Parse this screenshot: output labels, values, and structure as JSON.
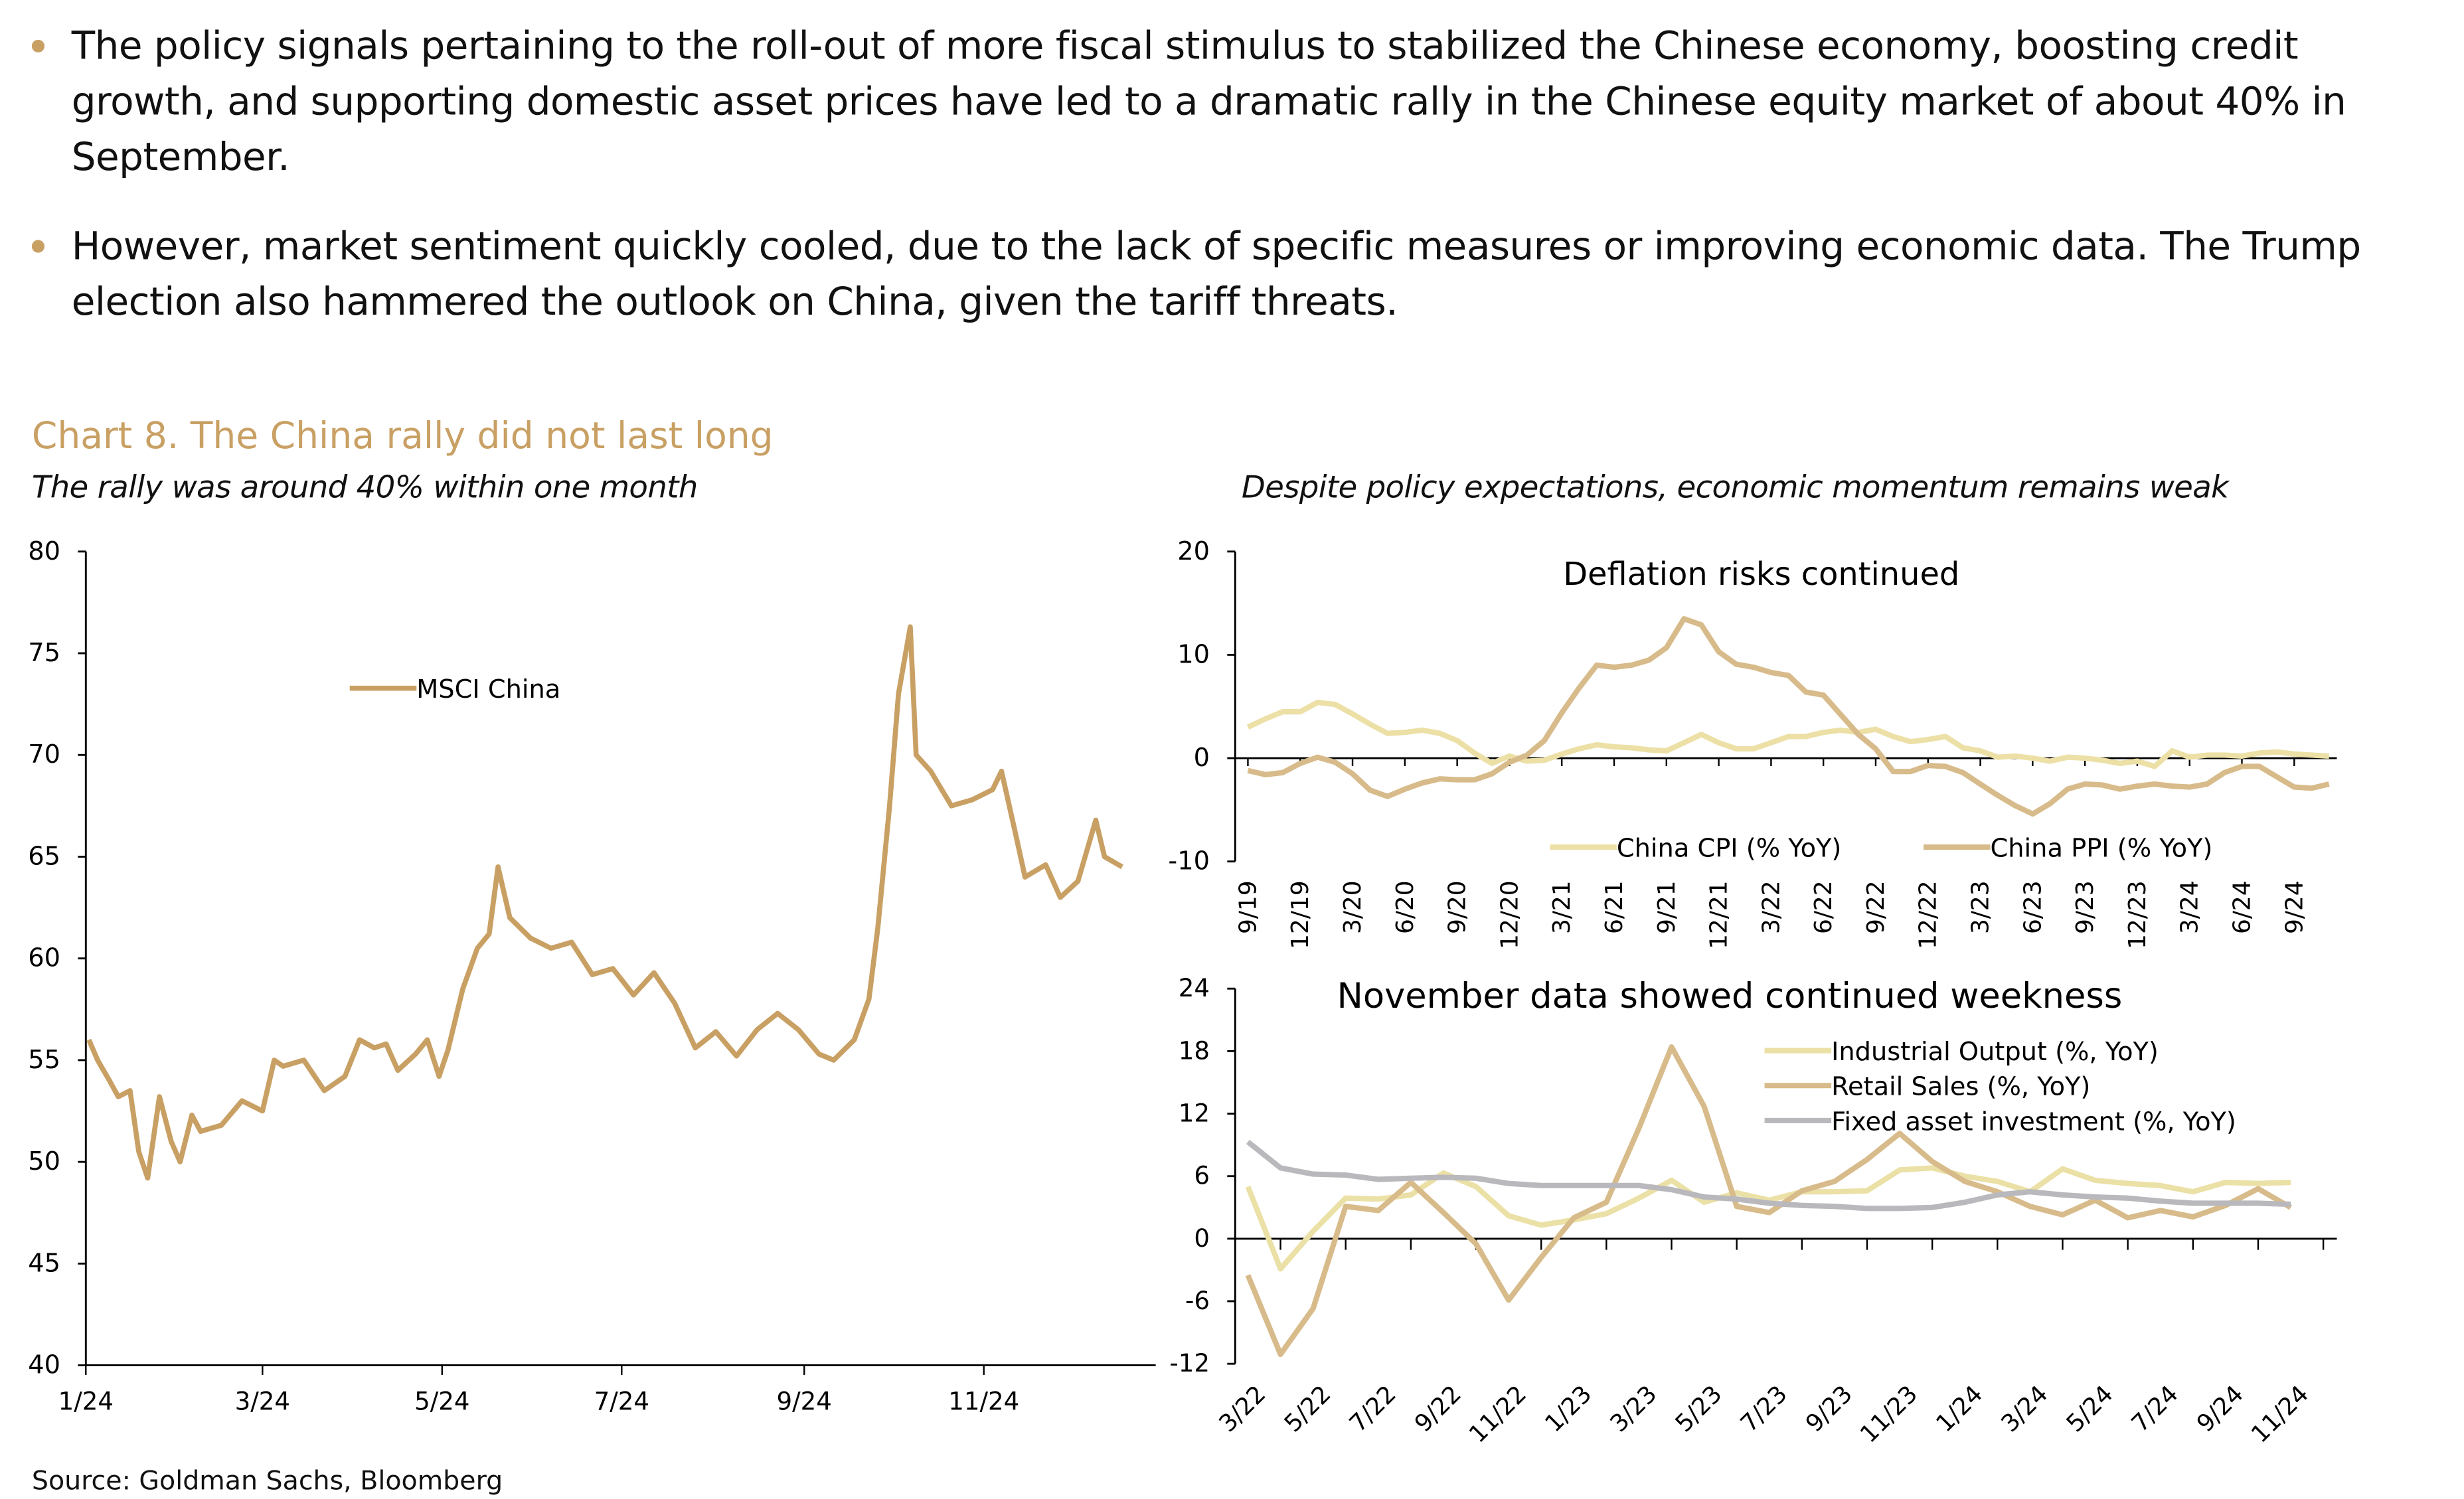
{
  "bullets": [
    "The policy signals pertaining to the roll-out of more fiscal stimulus to stabilized the Chinese economy, boosting credit growth, and supporting domestic asset prices have led to a dramatic rally in the Chinese equity market of about 40% in September.",
    "However, market sentiment quickly cooled, due to the lack of specific measures or improving economic data. The Trump election also hammered the outlook on China, given the tariff threats."
  ],
  "chart_title": "Chart 8. The China rally did not last long",
  "left_subtitle": "The rally was around 40% within one month",
  "right_subtitle": "Despite policy expectations, economic momentum remains weak",
  "source": "Source: Goldman Sachs, Bloomberg",
  "colors": {
    "accent": "#c9a064",
    "msci": "#c9a064",
    "cpi": "#ece0a6",
    "ppi": "#d8bb8a",
    "ip": "#ebe0a6",
    "retail": "#d8bb8a",
    "fai": "#b9b9bd"
  },
  "chart_data": [
    {
      "type": "line",
      "title": "",
      "ylim": [
        40,
        80
      ],
      "yticks": [
        "40",
        "45",
        "50",
        "55",
        "60",
        "65",
        "70",
        "75",
        "80"
      ],
      "xlim": [
        "2024-01-01",
        "2024-12-31"
      ],
      "xticks": [
        [
          "2024-01-01",
          "1/24"
        ],
        [
          "2024-03-01",
          "3/24"
        ],
        [
          "2024-05-01",
          "5/24"
        ],
        [
          "2024-07-01",
          "7/24"
        ],
        [
          "2024-09-01",
          "9/24"
        ],
        [
          "2024-11-01",
          "11/24"
        ]
      ],
      "legend": "top-left",
      "series": [
        {
          "name": "MSCI China",
          "color": "#c9a064",
          "points": [
            [
              "2024-01-02",
              56
            ],
            [
              "2024-01-05",
              55
            ],
            [
              "2024-01-09",
              54
            ],
            [
              "2024-01-12",
              53.2
            ],
            [
              "2024-01-16",
              53.5
            ],
            [
              "2024-01-19",
              50.5
            ],
            [
              "2024-01-22",
              49.2
            ],
            [
              "2024-01-26",
              53.2
            ],
            [
              "2024-01-30",
              51
            ],
            [
              "2024-02-02",
              50
            ],
            [
              "2024-02-06",
              52.3
            ],
            [
              "2024-02-09",
              51.5
            ],
            [
              "2024-02-16",
              51.8
            ],
            [
              "2024-02-23",
              53
            ],
            [
              "2024-03-01",
              52.5
            ],
            [
              "2024-03-05",
              55
            ],
            [
              "2024-03-08",
              54.7
            ],
            [
              "2024-03-15",
              55
            ],
            [
              "2024-03-22",
              53.5
            ],
            [
              "2024-03-29",
              54.2
            ],
            [
              "2024-04-03",
              56
            ],
            [
              "2024-04-08",
              55.6
            ],
            [
              "2024-04-12",
              55.8
            ],
            [
              "2024-04-16",
              54.5
            ],
            [
              "2024-04-22",
              55.3
            ],
            [
              "2024-04-26",
              56
            ],
            [
              "2024-04-30",
              54.2
            ],
            [
              "2024-05-03",
              55.5
            ],
            [
              "2024-05-08",
              58.5
            ],
            [
              "2024-05-13",
              60.5
            ],
            [
              "2024-05-17",
              61.2
            ],
            [
              "2024-05-20",
              64.5
            ],
            [
              "2024-05-24",
              62
            ],
            [
              "2024-05-31",
              61
            ],
            [
              "2024-06-07",
              60.5
            ],
            [
              "2024-06-14",
              60.8
            ],
            [
              "2024-06-21",
              59.2
            ],
            [
              "2024-06-28",
              59.5
            ],
            [
              "2024-07-05",
              58.2
            ],
            [
              "2024-07-12",
              59.3
            ],
            [
              "2024-07-19",
              57.8
            ],
            [
              "2024-07-26",
              55.6
            ],
            [
              "2024-08-02",
              56.4
            ],
            [
              "2024-08-09",
              55.2
            ],
            [
              "2024-08-16",
              56.5
            ],
            [
              "2024-08-23",
              57.3
            ],
            [
              "2024-08-30",
              56.5
            ],
            [
              "2024-09-06",
              55.3
            ],
            [
              "2024-09-11",
              55
            ],
            [
              "2024-09-18",
              56
            ],
            [
              "2024-09-23",
              58
            ],
            [
              "2024-09-26",
              61.5
            ],
            [
              "2024-09-30",
              67.5
            ],
            [
              "2024-10-03",
              73
            ],
            [
              "2024-10-07",
              76.3
            ],
            [
              "2024-10-09",
              70
            ],
            [
              "2024-10-14",
              69.2
            ],
            [
              "2024-10-21",
              67.5
            ],
            [
              "2024-10-28",
              67.8
            ],
            [
              "2024-11-04",
              68.3
            ],
            [
              "2024-11-07",
              69.2
            ],
            [
              "2024-11-12",
              66
            ],
            [
              "2024-11-15",
              64
            ],
            [
              "2024-11-22",
              64.6
            ],
            [
              "2024-11-27",
              63
            ],
            [
              "2024-12-03",
              63.8
            ],
            [
              "2024-12-09",
              66.8
            ],
            [
              "2024-12-12",
              65
            ],
            [
              "2024-12-18",
              64.5
            ]
          ]
        }
      ]
    },
    {
      "type": "line",
      "title": "Deflation risks continued",
      "ylim": [
        -10,
        20
      ],
      "yticks": [
        "-10",
        "0",
        "10",
        "20"
      ],
      "x_start": "9/19",
      "xticks": [
        "9/19",
        "12/19",
        "3/20",
        "6/20",
        "9/20",
        "12/20",
        "3/21",
        "6/21",
        "9/21",
        "12/21",
        "3/22",
        "6/22",
        "9/22",
        "12/22",
        "3/23",
        "6/23",
        "9/23",
        "12/23",
        "3/24",
        "6/24",
        "9/24"
      ],
      "legend": "bottom",
      "series": [
        {
          "name": "China CPI (% YoY)",
          "color": "#ece0a6",
          "values": [
            3.0,
            3.8,
            4.5,
            4.5,
            5.4,
            5.2,
            4.3,
            3.3,
            2.4,
            2.5,
            2.7,
            2.4,
            1.7,
            0.5,
            -0.5,
            0.2,
            -0.3,
            -0.2,
            0.4,
            0.9,
            1.3,
            1.1,
            1.0,
            0.8,
            0.7,
            1.5,
            2.3,
            1.5,
            0.9,
            0.9,
            1.5,
            2.1,
            2.1,
            2.5,
            2.7,
            2.5,
            2.8,
            2.1,
            1.6,
            1.8,
            2.1,
            1.0,
            0.7,
            0.1,
            0.2,
            0.0,
            -0.3,
            0.1,
            0.0,
            -0.2,
            -0.5,
            -0.3,
            -0.8,
            0.7,
            0.1,
            0.3,
            0.3,
            0.2,
            0.5,
            0.6,
            0.4,
            0.3,
            0.2
          ]
        },
        {
          "name": "China PPI (% YoY)",
          "color": "#d8bb8a",
          "values": [
            -1.2,
            -1.6,
            -1.4,
            -0.5,
            0.1,
            -0.4,
            -1.5,
            -3.1,
            -3.7,
            -3.0,
            -2.4,
            -2.0,
            -2.1,
            -2.1,
            -1.5,
            -0.4,
            0.3,
            1.7,
            4.4,
            6.8,
            9.0,
            8.8,
            9.0,
            9.5,
            10.7,
            13.5,
            12.9,
            10.3,
            9.1,
            8.8,
            8.3,
            8.0,
            6.4,
            6.1,
            4.2,
            2.3,
            0.9,
            -1.3,
            -1.3,
            -0.7,
            -0.8,
            -1.4,
            -2.5,
            -3.6,
            -4.6,
            -5.4,
            -4.4,
            -3.0,
            -2.5,
            -2.6,
            -3.0,
            -2.7,
            -2.5,
            -2.7,
            -2.8,
            -2.5,
            -1.4,
            -0.8,
            -0.8,
            -1.8,
            -2.8,
            -2.9,
            -2.5
          ]
        }
      ]
    },
    {
      "type": "line",
      "title": "November data showed continued weekness",
      "ylim": [
        -12,
        24
      ],
      "yticks": [
        "-12",
        "-6",
        "0",
        "6",
        "12",
        "18",
        "24"
      ],
      "x_start": "3/22",
      "xticks": [
        "3/22",
        "5/22",
        "7/22",
        "9/22",
        "11/22",
        "1/23",
        "3/23",
        "5/23",
        "7/23",
        "9/23",
        "11/23",
        "1/24",
        "3/24",
        "5/24",
        "7/24",
        "9/24",
        "11/24"
      ],
      "legend": "top-right",
      "series": [
        {
          "name": "Industrial Output (%, YoY)",
          "color": "#ebe0a6",
          "values": [
            5.0,
            -2.9,
            0.7,
            3.9,
            3.8,
            4.2,
            6.3,
            5.0,
            2.2,
            1.3,
            1.8,
            2.4,
            3.9,
            5.6,
            3.5,
            4.4,
            3.7,
            4.5,
            4.5,
            4.6,
            6.6,
            6.8,
            6.0,
            5.5,
            4.5,
            6.7,
            5.6,
            5.3,
            5.1,
            4.5,
            5.4,
            5.3,
            5.4
          ]
        },
        {
          "name": "Retail Sales (%, YoY)",
          "color": "#d8bb8a",
          "values": [
            -3.5,
            -11.1,
            -6.7,
            3.1,
            2.7,
            5.4,
            2.5,
            -0.5,
            -5.9,
            -1.8,
            2.0,
            3.5,
            10.6,
            18.4,
            12.7,
            3.1,
            2.5,
            4.6,
            5.5,
            7.6,
            10.1,
            7.4,
            5.5,
            4.5,
            3.1,
            2.3,
            3.7,
            2.0,
            2.7,
            2.1,
            3.2,
            4.8,
            3.0
          ]
        },
        {
          "name": "Fixed asset investment (%, YoY)",
          "color": "#b9b9bd",
          "values": [
            9.3,
            6.8,
            6.2,
            6.1,
            5.7,
            5.8,
            5.9,
            5.8,
            5.3,
            5.1,
            5.1,
            5.1,
            5.1,
            4.7,
            4.0,
            3.8,
            3.4,
            3.2,
            3.1,
            2.9,
            2.9,
            3.0,
            3.5,
            4.2,
            4.5,
            4.2,
            4.0,
            3.9,
            3.6,
            3.4,
            3.4,
            3.4,
            3.3
          ]
        }
      ]
    }
  ]
}
